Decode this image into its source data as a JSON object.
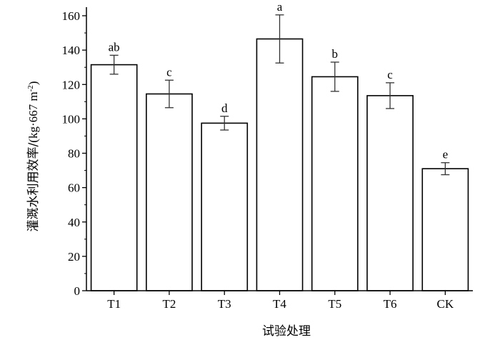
{
  "chart_data": {
    "type": "bar",
    "title": "",
    "xlabel": "试验处理",
    "ylabel": {
      "zh": "灌溉水利用效率/",
      "unit_open": "(kg·667 m",
      "unit_sup": "-2",
      "unit_close": ")"
    },
    "categories": [
      "T1",
      "T2",
      "T3",
      "T4",
      "T5",
      "T6",
      "CK"
    ],
    "values": [
      131.5,
      114.5,
      97.5,
      146.5,
      124.5,
      113.5,
      71.0
    ],
    "errors": [
      5.5,
      8.0,
      4.0,
      14.0,
      8.5,
      7.5,
      3.5
    ],
    "significance": [
      "ab",
      "c",
      "d",
      "a",
      "b",
      "c",
      "e"
    ],
    "ylim": [
      0,
      165
    ],
    "yticks": [
      0,
      20,
      40,
      60,
      80,
      100,
      120,
      140,
      160
    ],
    "grid": false,
    "bar_fill": "#ffffff",
    "bar_stroke": "#000000",
    "error_color": "#333333"
  }
}
